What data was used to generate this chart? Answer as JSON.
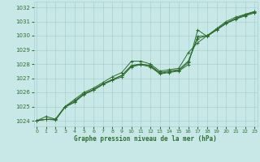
{
  "title": "Graphe pression niveau de la mer (hPa)",
  "bg_color": "#c8e8e8",
  "grid_color": "#a8d0d0",
  "line_color": "#2d6e2d",
  "xlim": [
    -0.3,
    23.3
  ],
  "ylim": [
    1023.6,
    1032.4
  ],
  "yticks": [
    1024,
    1025,
    1026,
    1027,
    1028,
    1029,
    1030,
    1031,
    1032
  ],
  "xticks": [
    0,
    1,
    2,
    3,
    4,
    5,
    6,
    7,
    8,
    9,
    10,
    11,
    12,
    13,
    14,
    15,
    16,
    17,
    18,
    19,
    20,
    21,
    22,
    23
  ],
  "series": [
    [
      1024.0,
      1024.3,
      1024.1,
      1025.0,
      1025.5,
      1026.0,
      1026.3,
      1026.7,
      1027.1,
      1027.4,
      1028.2,
      1028.2,
      1028.0,
      1027.5,
      1027.6,
      1027.7,
      1028.8,
      1029.5,
      1030.0,
      1030.5,
      1031.0,
      1031.3,
      1031.5,
      1031.7
    ],
    [
      1024.0,
      1024.1,
      1024.1,
      1025.0,
      1025.4,
      1025.9,
      1026.2,
      1026.6,
      1026.9,
      1027.2,
      1027.9,
      1028.0,
      1027.9,
      1027.4,
      1027.5,
      1027.6,
      1028.2,
      1029.8,
      1030.0,
      1030.4,
      1030.9,
      1031.2,
      1031.5,
      1031.7
    ],
    [
      1024.0,
      1024.1,
      1024.1,
      1025.0,
      1025.3,
      1025.9,
      1026.2,
      1026.6,
      1026.9,
      1027.2,
      1027.85,
      1028.0,
      1027.85,
      1027.35,
      1027.45,
      1027.55,
      1028.1,
      1029.95,
      1030.0,
      1030.45,
      1030.9,
      1031.2,
      1031.45,
      1031.65
    ],
    [
      1024.0,
      1024.1,
      1024.05,
      1024.95,
      1025.3,
      1025.85,
      1026.15,
      1026.55,
      1026.85,
      1027.1,
      1027.8,
      1027.95,
      1027.8,
      1027.3,
      1027.4,
      1027.5,
      1027.95,
      1030.4,
      1029.95,
      1030.4,
      1030.85,
      1031.15,
      1031.4,
      1031.6
    ]
  ]
}
